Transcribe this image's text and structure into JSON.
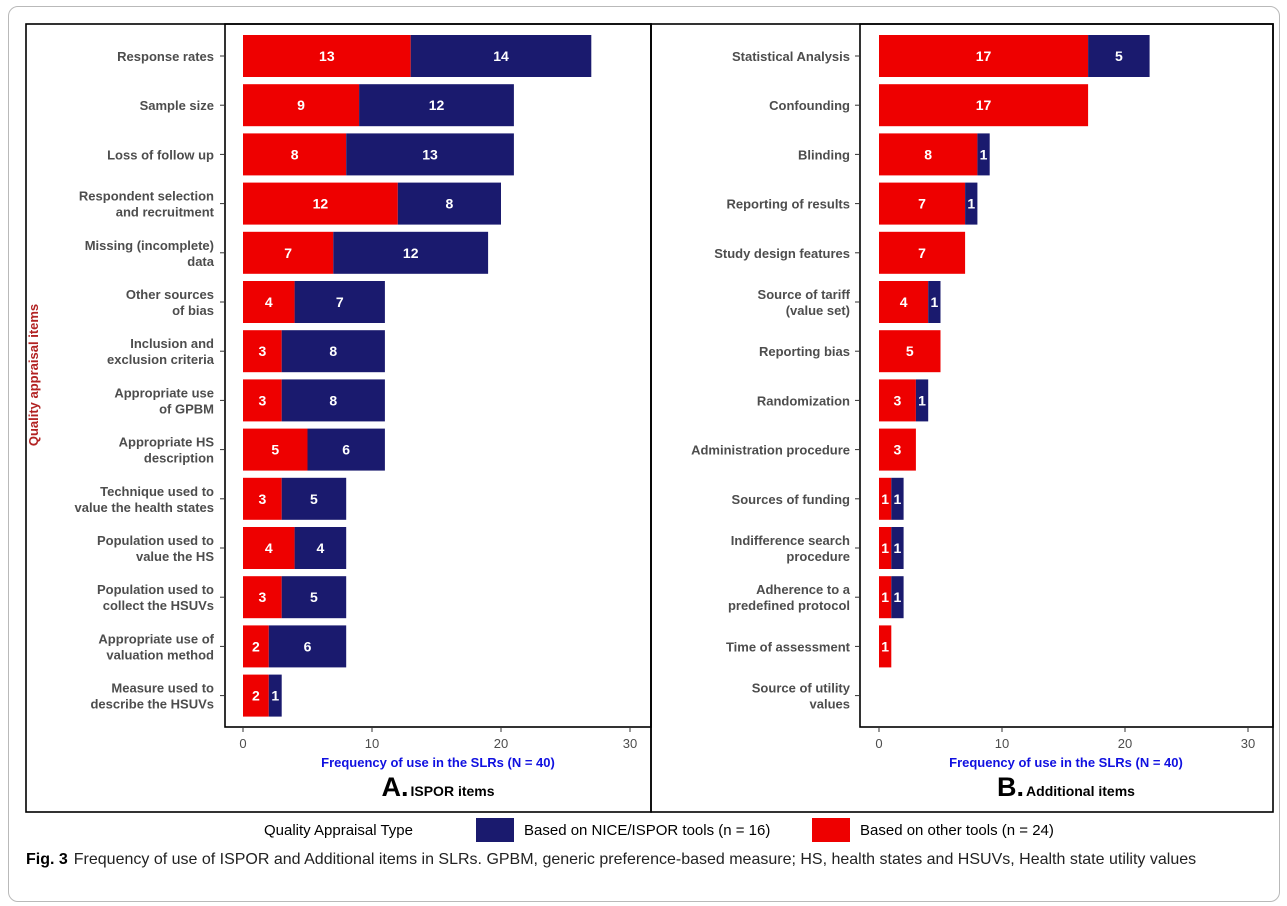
{
  "figure": {
    "caption_label": "Fig. 3",
    "caption_text": "Frequency of use of ISPOR and Additional items in SLRs. GPBM, generic preference-based measure; HS, health states and HSUVs, Health state utility values"
  },
  "legend": {
    "title": "Quality Appraisal Type",
    "items": [
      {
        "label": "Based on NICE/ISPOR tools (n = 16)",
        "color": "#1a1a6e"
      },
      {
        "label": "Based on other tools (n = 24)",
        "color": "#ee0000"
      }
    ]
  },
  "colors": {
    "other": "#ee0000",
    "nice": "#1a1a6e",
    "ylabel": "#b22222",
    "xlabel": "#1010e0"
  },
  "chart_data": [
    {
      "type": "bar",
      "orientation": "horizontal",
      "stacked": true,
      "panel_letter": "A.",
      "panel_title": "ISPOR items",
      "ylabel": "Quality appraisal items",
      "xlabel": "Frequency of use in the SLRs (N = 40)",
      "xlim": [
        0,
        30
      ],
      "xticks": [
        "0",
        "10",
        "20",
        "30"
      ],
      "grid": false,
      "categories": [
        "Response rates",
        "Sample size",
        "Loss of follow up",
        "Respondent selection\nand recruitment",
        "Missing (incomplete)\ndata",
        "Other sources\nof bias",
        "Inclusion and\nexclusion criteria",
        "Appropriate use\nof GPBM",
        "Appropriate HS\ndescription",
        "Technique used to\nvalue the health states",
        "Population used to\nvalue the HS",
        "Population used to\ncollect the HSUVs",
        "Appropriate use of\nvaluation method",
        "Measure used to\ndescribe the HSUVs"
      ],
      "series": [
        {
          "name": "Based on other tools (n = 24)",
          "values": [
            13,
            9,
            8,
            12,
            7,
            4,
            3,
            3,
            5,
            3,
            4,
            3,
            2,
            2
          ]
        },
        {
          "name": "Based on NICE/ISPOR tools (n = 16)",
          "values": [
            14,
            12,
            13,
            8,
            12,
            7,
            8,
            8,
            6,
            5,
            4,
            5,
            6,
            1
          ]
        }
      ]
    },
    {
      "type": "bar",
      "orientation": "horizontal",
      "stacked": true,
      "panel_letter": "B.",
      "panel_title": "Additional items",
      "ylabel": "",
      "xlabel": "Frequency of use in the SLRs (N = 40)",
      "xlim": [
        0,
        30
      ],
      "xticks": [
        "0",
        "10",
        "20",
        "30"
      ],
      "grid": false,
      "categories": [
        "Statistical Analysis",
        "Confounding",
        "Blinding",
        "Reporting of results",
        "Study design features",
        "Source of tariff\n(value set)",
        "Reporting bias",
        "Randomization",
        "Administration procedure",
        "Sources of funding",
        "Indifference search\nprocedure",
        "Adherence to a\npredefined protocol",
        "Time of assessment",
        "Source of utility\nvalues"
      ],
      "series": [
        {
          "name": "Based on other tools (n = 24)",
          "values": [
            17,
            17,
            8,
            7,
            7,
            4,
            5,
            3,
            3,
            1,
            1,
            1,
            1,
            0
          ]
        },
        {
          "name": "Based on NICE/ISPOR tools (n = 16)",
          "values": [
            5,
            0,
            1,
            1,
            0,
            1,
            0,
            1,
            0,
            1,
            1,
            1,
            0,
            0
          ]
        }
      ]
    }
  ]
}
